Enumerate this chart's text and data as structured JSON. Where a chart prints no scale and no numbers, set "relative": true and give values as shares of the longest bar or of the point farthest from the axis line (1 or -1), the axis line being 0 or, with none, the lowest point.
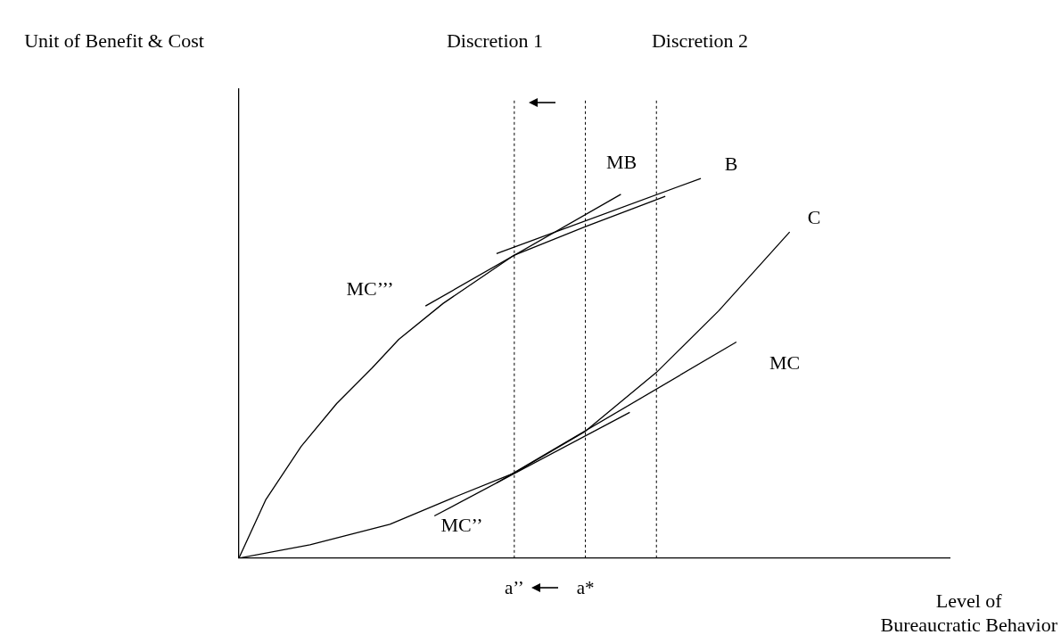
{
  "chart_data": {
    "type": "line",
    "relative": true,
    "xlabel": "Level of\nBureaucratic Behavior",
    "categories": [
      null,
      null,
      null,
      null,
      null,
      null,
      null,
      null,
      null,
      null,
      null,
      null,
      null,
      null,
      null,
      null,
      null,
      null,
      null,
      null,
      null,
      null,
      null,
      null,
      null,
      null,
      null,
      null,
      null,
      null,
      null,
      "a’’",
      null,
      null,
      null,
      null,
      null,
      null,
      null,
      "a*",
      null,
      null,
      null,
      null,
      null,
      null,
      null,
      null,
      null,
      null,
      null,
      null,
      null,
      null,
      null,
      null,
      null,
      null,
      null,
      null,
      null,
      null,
      null,
      null,
      null,
      null,
      null,
      null,
      null,
      null,
      null,
      null,
      null,
      null,
      null,
      null,
      null,
      null,
      null,
      null,
      null
    ],
    "grid": "x",
    "legend": false,
    "marker": "none",
    "series": [
      {
        "color": "#000000",
        "values": [
          0,
          null,
          null,
          0.153,
          null,
          null,
          null,
          0.294,
          null,
          null,
          null,
          0.407,
          null,
          null,
          null,
          0.501,
          null,
          null,
          0.576,
          null,
          null,
          null,
          null,
          0.671,
          null,
          null,
          null,
          null,
          null,
          null,
          null,
          0.798,
          null,
          null,
          null,
          null,
          null,
          null,
          null,
          0.873,
          null,
          null,
          null,
          null,
          null,
          null,
          null,
          null,
          0.953,
          null,
          null,
          null,
          null,
          null,
          null,
          null,
          null,
          null,
          null,
          null,
          null,
          null,
          null,
          null,
          null,
          null,
          null,
          null,
          null,
          null,
          null,
          null,
          null,
          null,
          null,
          null,
          null,
          null,
          null,
          null,
          null
        ]
      },
      {
        "color": "#000000",
        "values": [
          null,
          null,
          null,
          null,
          null,
          null,
          null,
          null,
          null,
          null,
          null,
          null,
          null,
          null,
          null,
          null,
          null,
          null,
          null,
          null,
          null,
          0.664,
          null,
          null,
          null,
          null,
          null,
          null,
          null,
          null,
          null,
          null,
          null,
          null,
          null,
          null,
          null,
          null,
          null,
          null,
          null,
          null,
          null,
          0.958,
          null,
          null,
          null,
          null,
          null,
          null,
          null,
          null,
          null,
          null,
          null,
          null,
          null,
          null,
          null,
          null,
          null,
          null,
          null,
          null,
          null,
          null,
          null,
          null,
          null,
          null,
          null,
          null,
          null,
          null,
          null,
          null,
          null,
          null,
          null,
          null,
          null
        ]
      },
      {
        "color": "#000000",
        "values": [
          null,
          null,
          null,
          null,
          null,
          null,
          null,
          null,
          null,
          null,
          null,
          null,
          null,
          null,
          null,
          null,
          null,
          null,
          null,
          null,
          null,
          null,
          null,
          null,
          null,
          null,
          null,
          null,
          null,
          0.802,
          null,
          null,
          null,
          null,
          null,
          null,
          null,
          null,
          null,
          null,
          null,
          null,
          null,
          null,
          null,
          null,
          null,
          null,
          null,
          null,
          null,
          null,
          1.0,
          null,
          null,
          null,
          null,
          null,
          null,
          null,
          null,
          null,
          null,
          null,
          null,
          null,
          null,
          null,
          null,
          null,
          null,
          null,
          null,
          null,
          null,
          null,
          null,
          null,
          null,
          null,
          null
        ]
      },
      {
        "color": "#000000",
        "values": [
          0,
          null,
          null,
          null,
          null,
          null,
          null,
          null,
          0.035,
          null,
          null,
          null,
          null,
          null,
          null,
          null,
          null,
          0.089,
          null,
          null,
          null,
          null,
          null,
          null,
          0.158,
          null,
          null,
          null,
          null,
          null,
          null,
          0.224,
          null,
          null,
          null,
          null,
          null,
          null,
          null,
          0.334,
          null,
          null,
          null,
          null,
          null,
          null,
          null,
          0.489,
          null,
          null,
          null,
          null,
          null,
          null,
          0.651,
          null,
          null,
          null,
          null,
          null,
          null,
          null,
          0.859,
          null,
          null,
          null,
          null,
          null,
          null,
          null,
          null,
          null,
          null,
          null,
          null,
          null,
          null,
          null,
          null,
          null,
          null
        ]
      },
      {
        "color": "#000000",
        "values": [
          null,
          null,
          null,
          null,
          null,
          null,
          null,
          null,
          null,
          null,
          null,
          null,
          null,
          null,
          null,
          null,
          null,
          null,
          null,
          null,
          null,
          null,
          0.111,
          null,
          null,
          null,
          null,
          null,
          null,
          null,
          null,
          null,
          null,
          null,
          null,
          null,
          null,
          null,
          null,
          null,
          null,
          null,
          null,
          null,
          0.384,
          null,
          null,
          null,
          null,
          null,
          null,
          null,
          null,
          null,
          null,
          null,
          null,
          null,
          null,
          null,
          null,
          null,
          null,
          null,
          null,
          null,
          null,
          null,
          null,
          null,
          null,
          null,
          null,
          null,
          null,
          null,
          null,
          null,
          null,
          null,
          null
        ]
      },
      {
        "color": "#000000",
        "values": [
          null,
          null,
          null,
          null,
          null,
          null,
          null,
          null,
          null,
          null,
          null,
          null,
          null,
          null,
          null,
          null,
          null,
          null,
          null,
          null,
          null,
          null,
          null,
          null,
          null,
          null,
          null,
          null,
          null,
          0.198,
          null,
          null,
          null,
          null,
          null,
          null,
          null,
          null,
          null,
          null,
          null,
          null,
          null,
          null,
          null,
          null,
          null,
          null,
          null,
          null,
          null,
          null,
          null,
          null,
          null,
          null,
          0.569,
          null,
          null,
          null,
          null,
          null,
          null,
          null,
          null,
          null,
          null,
          null,
          null,
          null,
          null,
          null,
          null,
          null,
          null,
          null,
          null,
          null,
          null,
          null,
          null
        ]
      }
    ],
    "annotations": [
      "Unit of Benefit & Cost",
      "Discretion 1",
      "Discretion 2",
      "MB",
      "B",
      "C",
      "MC",
      "MC’’’",
      "MC’’"
    ]
  }
}
